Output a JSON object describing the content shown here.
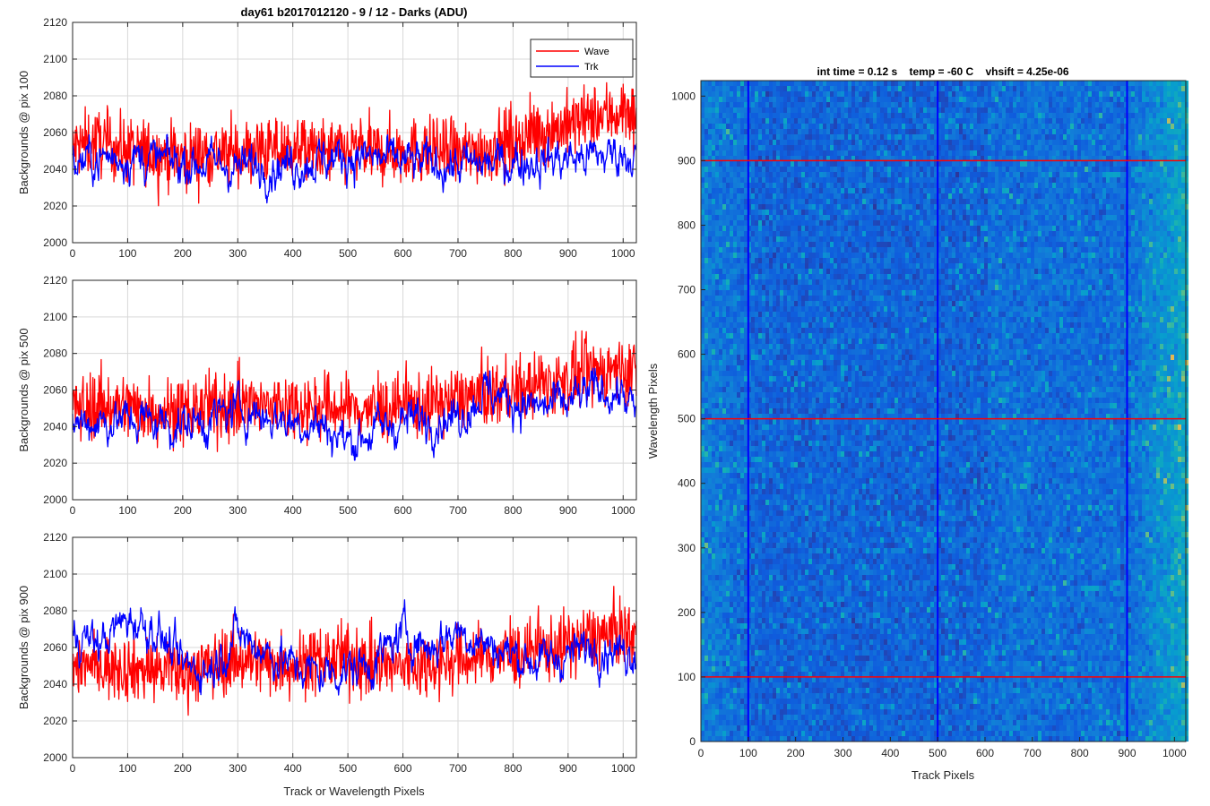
{
  "figure": {
    "suptitle": "day61 b2017012120 - 9 / 12 - Darks (ADU)",
    "line_xlabel": "Track or Wavelength Pixels",
    "image_title": "int time = 0.12 s    temp = -60 C    vhsift = 4.25e-06",
    "image_xlabel": "Track Pixels",
    "image_ylabel": "Wavelength Pixels",
    "legend_labels": [
      "Wave",
      "Trk"
    ],
    "colors": {
      "wave": "#ff0000",
      "trk": "#0000ff",
      "grid": "#d9d9d9",
      "axis": "#262626"
    }
  },
  "chart_data": [
    {
      "type": "line",
      "ylabel": "Backgrounds @ pix 100",
      "xlim": [
        0,
        1024
      ],
      "ylim": [
        2000,
        2120
      ],
      "xticks": [
        0,
        100,
        200,
        300,
        400,
        500,
        600,
        700,
        800,
        900,
        1000
      ],
      "yticks": [
        2000,
        2020,
        2040,
        2060,
        2080,
        2100,
        2120
      ],
      "grid": true,
      "legend": "top-right",
      "series": [
        {
          "name": "Wave",
          "color": "#ff0000",
          "x": [
            0,
            50,
            100,
            150,
            200,
            250,
            300,
            350,
            400,
            450,
            500,
            550,
            600,
            650,
            700,
            750,
            800,
            850,
            900,
            950,
            1000,
            1024
          ],
          "values": [
            2052,
            2055,
            2050,
            2049,
            2047,
            2049,
            2048,
            2050,
            2051,
            2049,
            2050,
            2049,
            2050,
            2050,
            2048,
            2051,
            2055,
            2060,
            2064,
            2068,
            2072,
            2070
          ]
        },
        {
          "name": "Trk",
          "color": "#0000ff",
          "x": [
            0,
            50,
            100,
            150,
            200,
            250,
            300,
            350,
            400,
            450,
            500,
            550,
            600,
            650,
            700,
            750,
            800,
            850,
            900,
            950,
            1000,
            1024
          ],
          "values": [
            2043,
            2046,
            2047,
            2045,
            2044,
            2043,
            2041,
            2042,
            2043,
            2045,
            2047,
            2046,
            2044,
            2043,
            2042,
            2043,
            2044,
            2045,
            2046,
            2047,
            2049,
            2048
          ]
        }
      ]
    },
    {
      "type": "line",
      "ylabel": "Backgrounds @ pix 500",
      "xlim": [
        0,
        1024
      ],
      "ylim": [
        2000,
        2120
      ],
      "xticks": [
        0,
        100,
        200,
        300,
        400,
        500,
        600,
        700,
        800,
        900,
        1000
      ],
      "yticks": [
        2000,
        2020,
        2040,
        2060,
        2080,
        2100,
        2120
      ],
      "grid": true,
      "series": [
        {
          "name": "Wave",
          "color": "#ff0000",
          "x": [
            0,
            50,
            100,
            150,
            200,
            250,
            300,
            350,
            400,
            450,
            500,
            550,
            600,
            650,
            700,
            750,
            800,
            850,
            900,
            950,
            1000,
            1024
          ],
          "values": [
            2050,
            2052,
            2051,
            2049,
            2048,
            2050,
            2052,
            2051,
            2052,
            2051,
            2050,
            2049,
            2051,
            2052,
            2055,
            2058,
            2060,
            2062,
            2066,
            2070,
            2072,
            2070
          ]
        },
        {
          "name": "Trk",
          "color": "#0000ff",
          "x": [
            0,
            50,
            100,
            150,
            200,
            250,
            300,
            350,
            400,
            450,
            500,
            550,
            600,
            650,
            700,
            750,
            800,
            850,
            900,
            950,
            1000,
            1024
          ],
          "values": [
            2042,
            2043,
            2044,
            2043,
            2040,
            2044,
            2050,
            2046,
            2043,
            2041,
            2032,
            2038,
            2043,
            2045,
            2045,
            2060,
            2054,
            2050,
            2053,
            2060,
            2058,
            2045
          ]
        }
      ]
    },
    {
      "type": "line",
      "ylabel": "Backgrounds @ pix 900",
      "xlim": [
        0,
        1024
      ],
      "ylim": [
        2000,
        2120
      ],
      "xticks": [
        0,
        100,
        200,
        300,
        400,
        500,
        600,
        700,
        800,
        900,
        1000
      ],
      "yticks": [
        2000,
        2020,
        2040,
        2060,
        2080,
        2100,
        2120
      ],
      "grid": true,
      "series": [
        {
          "name": "Wave",
          "color": "#ff0000",
          "x": [
            0,
            50,
            100,
            150,
            200,
            250,
            300,
            350,
            400,
            450,
            500,
            550,
            600,
            650,
            700,
            750,
            800,
            850,
            900,
            950,
            1000,
            1024
          ],
          "values": [
            2052,
            2050,
            2049,
            2048,
            2046,
            2050,
            2054,
            2052,
            2051,
            2053,
            2054,
            2050,
            2049,
            2052,
            2053,
            2055,
            2056,
            2058,
            2062,
            2066,
            2068,
            2066
          ]
        },
        {
          "name": "Trk",
          "color": "#0000ff",
          "x": [
            0,
            50,
            100,
            150,
            200,
            250,
            300,
            350,
            400,
            450,
            500,
            550,
            600,
            650,
            700,
            750,
            800,
            850,
            900,
            950,
            1000,
            1024
          ],
          "values": [
            2068,
            2062,
            2076,
            2070,
            2050,
            2048,
            2068,
            2058,
            2050,
            2046,
            2048,
            2052,
            2068,
            2060,
            2070,
            2062,
            2056,
            2052,
            2056,
            2062,
            2058,
            2060
          ]
        }
      ]
    },
    {
      "type": "heatmap",
      "title": "int time = 0.12 s    temp = -60 C    vhsift = 4.25e-06",
      "xlabel": "Track Pixels",
      "ylabel": "Wavelength Pixels",
      "xlim": [
        0,
        1024
      ],
      "ylim": [
        0,
        1024
      ],
      "xticks": [
        0,
        100,
        200,
        300,
        400,
        500,
        600,
        700,
        800,
        900,
        1000
      ],
      "yticks": [
        0,
        100,
        200,
        300,
        400,
        500,
        600,
        700,
        800,
        900,
        1000
      ],
      "colormap": "parula",
      "vertical_lines": {
        "color": "#0000ff",
        "x": [
          100,
          500,
          900
        ]
      },
      "horizontal_lines": {
        "color": "#ff0000",
        "y": [
          100,
          500,
          900
        ]
      }
    }
  ]
}
